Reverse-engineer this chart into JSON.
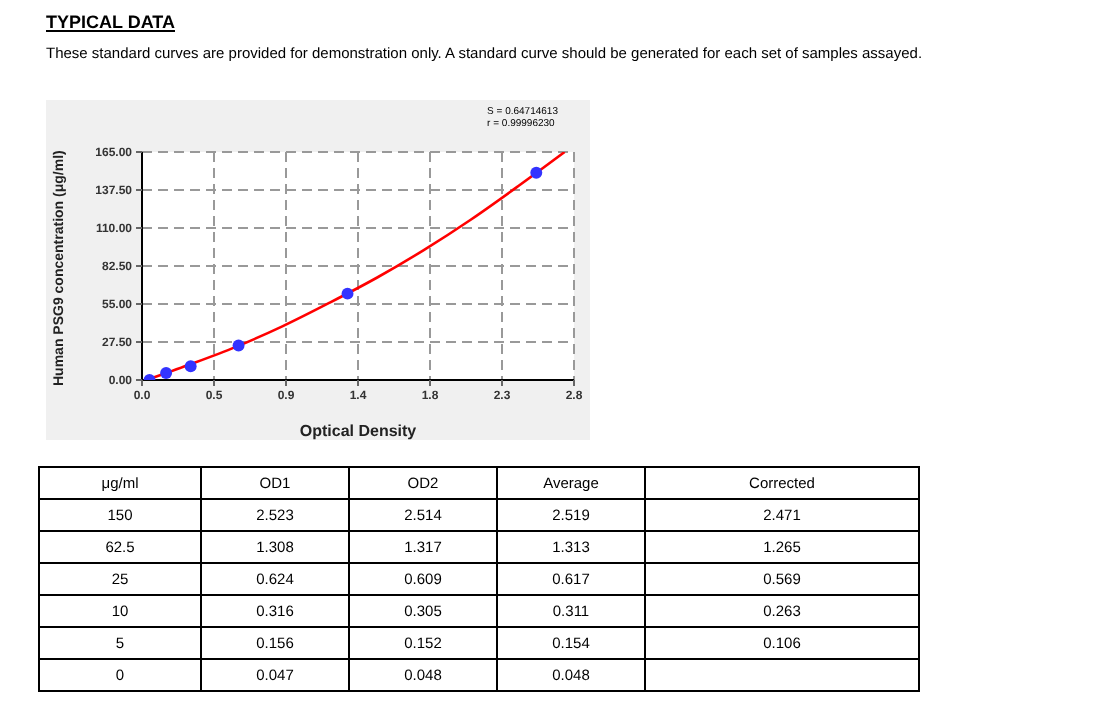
{
  "chart_data": [
    {
      "type": "scatter",
      "title": "TYPICAL DATA",
      "subtitle": "These standard curves are provided for demonstration only. A standard curve should be generated for each set of samples assayed.",
      "xlabel": "Optical Density",
      "ylabel": "Human PSG9 concentration (μg/ml)",
      "annotations": [
        "S = 0.64714613",
        "r = 0.99996230"
      ],
      "series": [
        {
          "type": "scatter",
          "color": "#3333ff",
          "marker": "circle",
          "x": [
            0.048,
            0.154,
            0.311,
            0.617,
            1.313,
            2.519
          ],
          "values": [
            0,
            5,
            10,
            25,
            62.5,
            150
          ]
        },
        {
          "type": "line",
          "color": "#ff0000",
          "line_style": "solid",
          "marker": "none",
          "x": [
            0.03,
            0.3,
            0.6,
            0.9,
            1.2,
            1.5,
            1.8,
            2.1,
            2.4,
            2.7
          ],
          "values": [
            0,
            11,
            24,
            39,
            56,
            74,
            94,
            116,
            140,
            165
          ]
        }
      ],
      "xlim": [
        0,
        2.76
      ],
      "xticks": [
        {
          "value": 0,
          "label": "0.0"
        },
        {
          "value": 0.46,
          "label": "0.5"
        },
        {
          "value": 0.92,
          "label": "0.9"
        },
        {
          "value": 1.38,
          "label": "1.4"
        },
        {
          "value": 1.84,
          "label": "1.8"
        },
        {
          "value": 2.3,
          "label": "2.3"
        },
        {
          "value": 2.76,
          "label": "2.8"
        }
      ],
      "ylim": [
        0,
        165
      ],
      "yticks": [
        {
          "value": 0,
          "label": "0.00"
        },
        {
          "value": 27.5,
          "label": "27.50"
        },
        {
          "value": 55,
          "label": "55.00"
        },
        {
          "value": 82.5,
          "label": "82.50"
        },
        {
          "value": 110,
          "label": "110.00"
        },
        {
          "value": 137.5,
          "label": "137.50"
        },
        {
          "value": 165,
          "label": "165.00"
        }
      ],
      "grid": true
    },
    {
      "type": "other",
      "categories": [
        "μg/ml",
        "OD1",
        "OD2",
        "Average",
        "Corrected"
      ],
      "cell_labels": [
        [
          "150",
          "2.523",
          "2.514",
          "2.519",
          "2.471"
        ],
        [
          "62.5",
          "1.308",
          "1.317",
          "1.313",
          "1.265"
        ],
        [
          "25",
          "0.624",
          "0.609",
          "0.617",
          "0.569"
        ],
        [
          "10",
          "0.316",
          "0.305",
          "0.311",
          "0.263"
        ],
        [
          "5",
          "0.156",
          "0.152",
          "0.154",
          "0.106"
        ],
        [
          "0",
          "0.047",
          "0.048",
          "0.048",
          null
        ]
      ]
    }
  ]
}
